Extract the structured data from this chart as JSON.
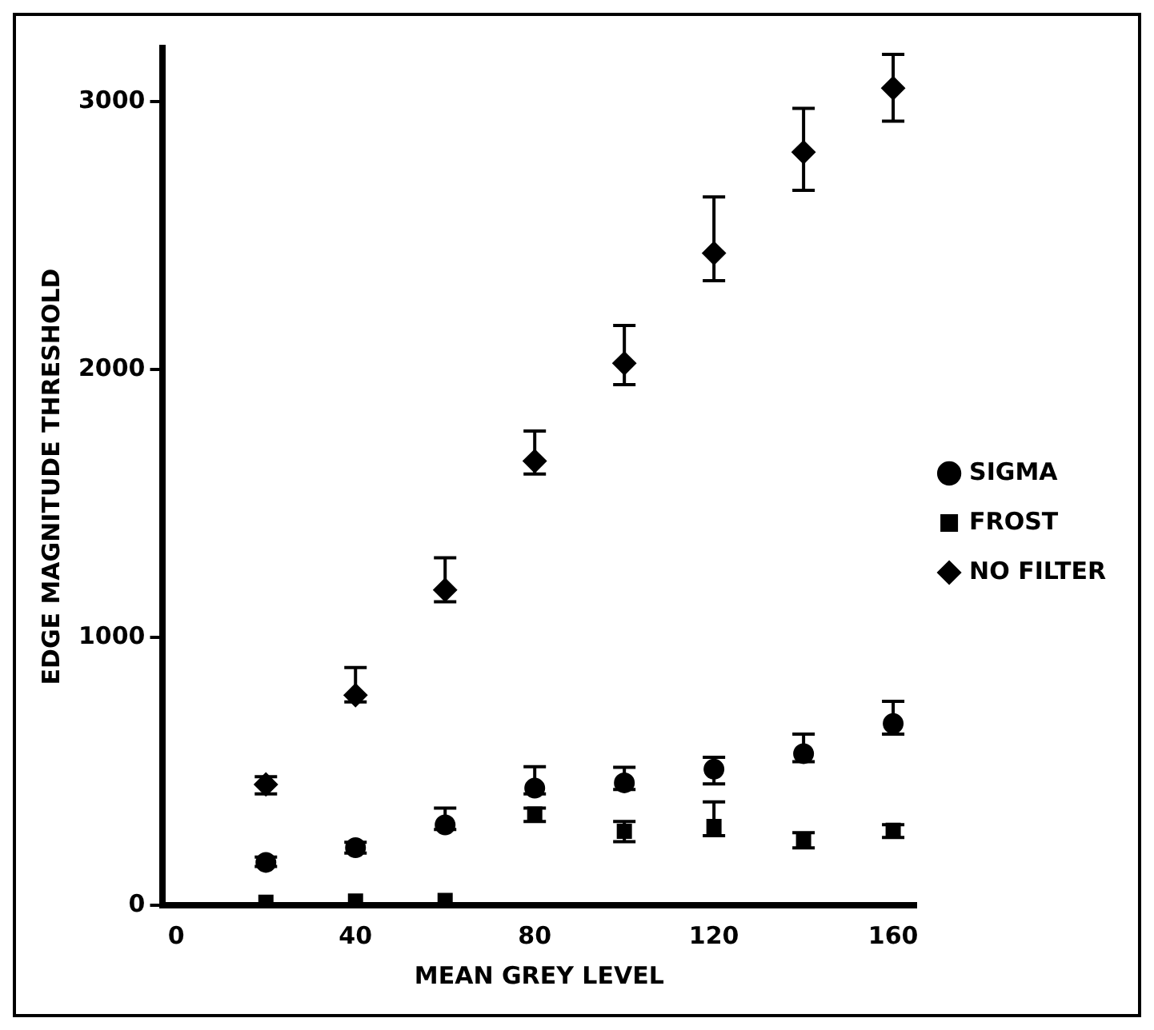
{
  "chart_data": {
    "type": "scatter",
    "xlabel": "MEAN GREY LEVEL",
    "ylabel": "EDGE MAGNITUDE THRESHOLD",
    "x": [
      20,
      40,
      60,
      80,
      100,
      120,
      140,
      160
    ],
    "series": [
      {
        "name": "SIGMA",
        "color": "#000000",
        "marker": "circle",
        "values": [
          160,
          215,
          300,
          437,
          457,
          508,
          566,
          678
        ],
        "errors": [
          [
            145,
            180
          ],
          [
            195,
            235
          ],
          [
            283,
            363
          ],
          [
            416,
            517
          ],
          [
            432,
            515
          ],
          [
            453,
            552
          ],
          [
            536,
            639
          ],
          [
            639,
            761
          ]
        ]
      },
      {
        "name": "FROST",
        "color": "#000000",
        "marker": "square",
        "values": [
          11,
          16,
          18,
          340,
          276,
          294,
          239,
          280
        ],
        "errors": [
          null,
          null,
          null,
          [
            313,
            363
          ],
          [
            237,
            313
          ],
          [
            260,
            386
          ],
          [
            214,
            271
          ],
          [
            253,
            301
          ]
        ]
      },
      {
        "name": "NO FILTER",
        "color": "#000000",
        "marker": "diamond",
        "values": [
          451,
          784,
          1177,
          1658,
          2023,
          2434,
          2811,
          3050
        ],
        "errors": [
          [
            416,
            480
          ],
          [
            759,
            887
          ],
          [
            1133,
            1297
          ],
          [
            1610,
            1770
          ],
          [
            1943,
            2164
          ],
          [
            2331,
            2644
          ],
          [
            2669,
            2975
          ],
          [
            2927,
            3176
          ]
        ]
      }
    ],
    "xlim": [
      -3,
      165
    ],
    "xticks": [
      0,
      40,
      80,
      120,
      160
    ],
    "ylim": [
      0,
      3200
    ],
    "yticks": [
      0,
      1000,
      2000,
      3000
    ],
    "grid": false,
    "legend": "right"
  }
}
